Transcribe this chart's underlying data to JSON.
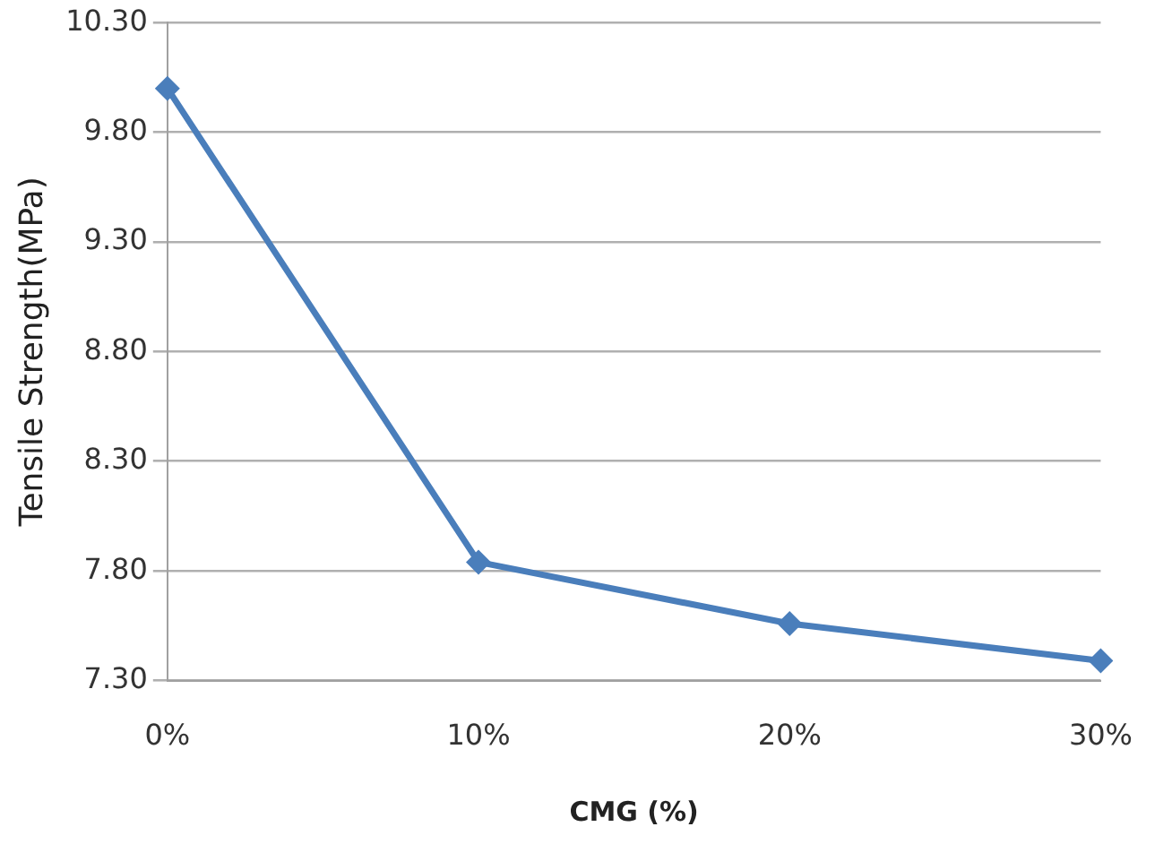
{
  "chart_data": {
    "type": "line",
    "xlabel": "CMG (%)",
    "ylabel": "Tensile Strength(MPa)",
    "categories": [
      "0%",
      "10%",
      "20%",
      "30%"
    ],
    "series": [
      {
        "color": "#4a7ebb",
        "values": [
          10.0,
          7.84,
          7.56,
          7.39
        ]
      }
    ],
    "ylim": [
      7.3,
      10.3
    ],
    "yticks": [
      {
        "value": 7.3,
        "label": "7.30"
      },
      {
        "value": 7.8,
        "label": "7.80"
      },
      {
        "value": 8.3,
        "label": "8.30"
      },
      {
        "value": 8.8,
        "label": "8.80"
      },
      {
        "value": 9.3,
        "label": "9.30"
      },
      {
        "value": 9.8,
        "label": "9.80"
      },
      {
        "value": 10.3,
        "label": "10.30"
      }
    ],
    "grid": "y",
    "legend": false,
    "marker": "diamond",
    "line_style": "solid"
  }
}
